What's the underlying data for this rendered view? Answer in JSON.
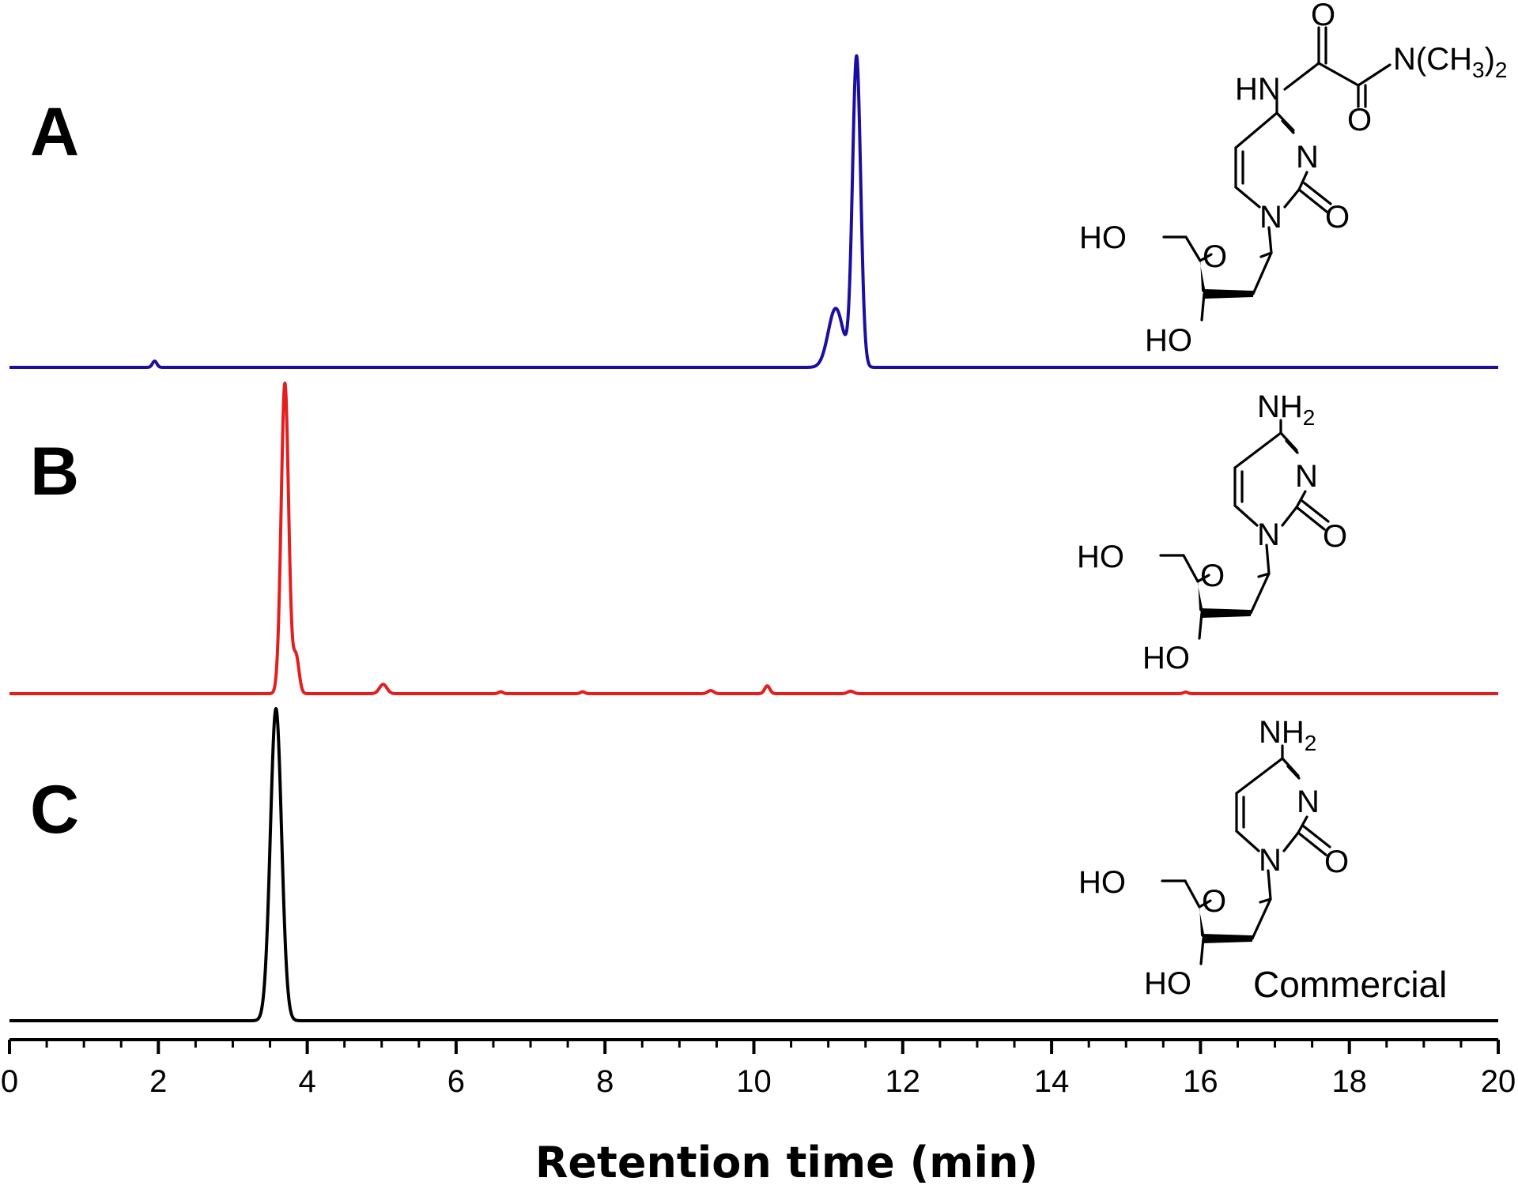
{
  "chart_data": {
    "type": "line",
    "xlabel": "Retention time (min)",
    "xlim": [
      0,
      20
    ],
    "x_ticks": [
      0,
      2,
      4,
      6,
      8,
      10,
      12,
      14,
      16,
      18,
      20
    ],
    "x_tick_labels": [
      "0",
      "2",
      "4",
      "6",
      "8",
      "10",
      "12",
      "14",
      "16",
      "18",
      "20"
    ],
    "grid": false,
    "legend": "none",
    "panels": [
      {
        "label": "A",
        "color": "#1a0fa0",
        "peaks": [
          {
            "rt": 1.95,
            "height": 0.02,
            "width": 0.03
          },
          {
            "rt": 11.1,
            "height": 0.19,
            "width": 0.1
          },
          {
            "rt": 11.38,
            "height": 1.0,
            "width": 0.055
          }
        ],
        "structure": {
          "name": "4-amide cytidine analog",
          "atoms": {
            "hn": "HN",
            "n3": "N",
            "n1": "N",
            "o2": "O",
            "o_upper": "O",
            "o_lower": "O",
            "n_dimethyl": "N(CH",
            "dimethyl_sub": "3",
            "dimethyl_close": ")",
            "dimethyl_sub2": "2",
            "ho5": "HO",
            "ring_o": "O",
            "ho3": "HO"
          }
        }
      },
      {
        "label": "B",
        "color": "#e31e1e",
        "peaks": [
          {
            "rt": 3.7,
            "height": 1.0,
            "width": 0.05
          },
          {
            "rt": 3.85,
            "height": 0.12,
            "width": 0.04
          },
          {
            "rt": 5.02,
            "height": 0.03,
            "width": 0.05
          },
          {
            "rt": 6.6,
            "height": 0.006,
            "width": 0.03
          },
          {
            "rt": 7.7,
            "height": 0.006,
            "width": 0.03
          },
          {
            "rt": 9.42,
            "height": 0.01,
            "width": 0.04
          },
          {
            "rt": 10.18,
            "height": 0.025,
            "width": 0.035
          },
          {
            "rt": 11.3,
            "height": 0.008,
            "width": 0.04
          },
          {
            "rt": 15.8,
            "height": 0.005,
            "width": 0.03
          }
        ],
        "structure": {
          "name": "2'-deoxycytidine",
          "atoms": {
            "nh2": "NH",
            "nh2_sub": "2",
            "n3": "N",
            "n1": "N",
            "o2": "O",
            "ho5": "HO",
            "ring_o": "O",
            "ho3": "HO"
          }
        }
      },
      {
        "label": "C",
        "color": "#000000",
        "peaks": [
          {
            "rt": 3.58,
            "height": 1.0,
            "width": 0.075
          }
        ],
        "structure": {
          "name": "2'-deoxycytidine",
          "atoms": {
            "nh2": "NH",
            "nh2_sub": "2",
            "n3": "N",
            "n1": "N",
            "o2": "O",
            "ho5": "HO",
            "ring_o": "O",
            "ho3": "HO"
          },
          "note": "Commercial"
        }
      }
    ]
  }
}
